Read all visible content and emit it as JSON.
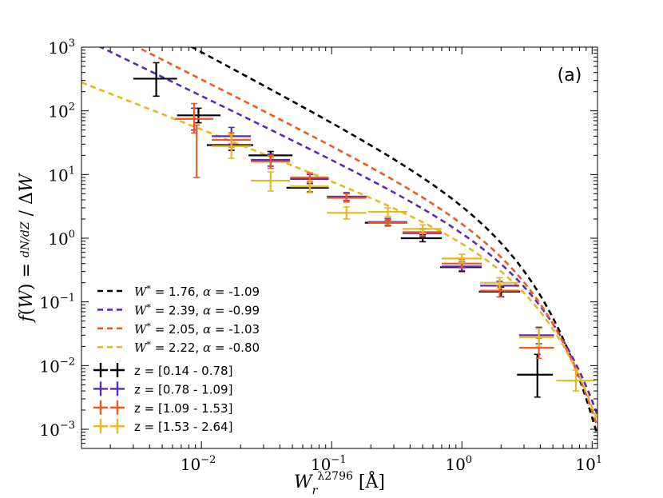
{
  "chart_data": {
    "type": "scatter",
    "panel_label": "(a)",
    "xlabel": "W_r^{λ2796} [Å]",
    "ylabel": "f(W) = dN/dZ / ΔW",
    "x_scale": "log",
    "y_scale": "log",
    "xlim": [
      0.0012,
      11
    ],
    "ylim": [
      0.0005,
      1000
    ],
    "x_tick_labels": [
      "10^-2",
      "10^-1",
      "10^0",
      "10^1"
    ],
    "y_tick_labels": [
      "10^-3",
      "10^-2",
      "10^-1",
      "10^0",
      "10^1",
      "10^2",
      "10^3"
    ],
    "grid": false,
    "legend_position": "lower-left",
    "fits": [
      {
        "label": "W* = 1.76, α = -1.09",
        "Wstar": 1.76,
        "alpha": -1.09,
        "norm": 3.0,
        "color": "#000000"
      },
      {
        "label": "W* = 2.39, α = -0.99",
        "Wstar": 2.39,
        "alpha": -0.99,
        "norm": 0.76,
        "color": "#5b2bb5"
      },
      {
        "label": "W* = 2.05, α = -1.03",
        "Wstar": 2.05,
        "alpha": -1.03,
        "norm": 1.3,
        "color": "#f05a22"
      },
      {
        "label": "W* = 2.22, α = -0.80",
        "Wstar": 2.22,
        "alpha": -0.8,
        "norm": 0.68,
        "color": "#e8b820"
      }
    ],
    "series": [
      {
        "name": "z = [0.14 - 0.78]",
        "color": "#000000",
        "points": [
          {
            "x": 0.0045,
            "y": 320,
            "xlo": 0.003,
            "xhi": 0.0065,
            "ylo": 170,
            "yhi": 570
          },
          {
            "x": 0.0095,
            "y": 85,
            "xlo": 0.0065,
            "xhi": 0.014,
            "ylo": 65,
            "yhi": 110
          },
          {
            "x": 0.017,
            "y": 29,
            "xlo": 0.011,
            "xhi": 0.025,
            "ylo": 24,
            "yhi": 35
          },
          {
            "x": 0.034,
            "y": 20,
            "xlo": 0.023,
            "xhi": 0.05,
            "ylo": 17,
            "yhi": 23
          },
          {
            "x": 0.068,
            "y": 6.2,
            "xlo": 0.045,
            "xhi": 0.095,
            "ylo": 5.3,
            "yhi": 7.2
          },
          {
            "x": 0.27,
            "y": 1.75,
            "xlo": 0.18,
            "xhi": 0.38,
            "ylo": 1.55,
            "yhi": 1.95
          },
          {
            "x": 0.5,
            "y": 1.0,
            "xlo": 0.34,
            "xhi": 0.7,
            "ylo": 0.88,
            "yhi": 1.13
          },
          {
            "x": 1.0,
            "y": 0.35,
            "xlo": 0.68,
            "xhi": 1.42,
            "ylo": 0.3,
            "yhi": 0.41
          },
          {
            "x": 2.0,
            "y": 0.145,
            "xlo": 1.35,
            "xhi": 2.8,
            "ylo": 0.12,
            "yhi": 0.17
          },
          {
            "x": 3.8,
            "y": 0.0072,
            "xlo": 2.65,
            "xhi": 5.0,
            "ylo": 0.0032,
            "yhi": 0.015
          }
        ]
      },
      {
        "name": "z = [0.78 - 1.09]",
        "color": "#5b2bb5",
        "points": [
          {
            "x": 0.0088,
            "y": 75,
            "xlo": 0.0063,
            "xhi": 0.0123,
            "ylo": 50,
            "yhi": 110
          },
          {
            "x": 0.017,
            "y": 40,
            "xlo": 0.012,
            "xhi": 0.024,
            "ylo": 30,
            "yhi": 55
          },
          {
            "x": 0.034,
            "y": 17,
            "xlo": 0.024,
            "xhi": 0.048,
            "ylo": 13.5,
            "yhi": 21
          },
          {
            "x": 0.068,
            "y": 8.5,
            "xlo": 0.048,
            "xhi": 0.095,
            "ylo": 7.2,
            "yhi": 10
          },
          {
            "x": 0.13,
            "y": 4.5,
            "xlo": 0.092,
            "xhi": 0.185,
            "ylo": 3.9,
            "yhi": 5.2
          },
          {
            "x": 0.27,
            "y": 1.8,
            "xlo": 0.19,
            "xhi": 0.38,
            "ylo": 1.6,
            "yhi": 2.05
          },
          {
            "x": 0.5,
            "y": 1.2,
            "xlo": 0.35,
            "xhi": 0.7,
            "ylo": 1.05,
            "yhi": 1.38
          },
          {
            "x": 1.0,
            "y": 0.36,
            "xlo": 0.7,
            "xhi": 1.42,
            "ylo": 0.31,
            "yhi": 0.42
          },
          {
            "x": 1.95,
            "y": 0.18,
            "xlo": 1.38,
            "xhi": 2.75,
            "ylo": 0.15,
            "yhi": 0.21
          },
          {
            "x": 3.9,
            "y": 0.03,
            "xlo": 2.75,
            "xhi": 5.1,
            "ylo": 0.022,
            "yhi": 0.04
          }
        ]
      },
      {
        "name": "z = [1.09 - 1.53]",
        "color": "#f05a22",
        "points": [
          {
            "x": 0.0088,
            "y": 75,
            "xlo": 0.0063,
            "xhi": 0.0123,
            "ylo": 45,
            "yhi": 130
          },
          {
            "x": 0.0092,
            "y": 30,
            "xlo": 0.0092,
            "xhi": 0.0092,
            "ylo": 9,
            "yhi": 60
          },
          {
            "x": 0.017,
            "y": 35,
            "xlo": 0.012,
            "xhi": 0.024,
            "ylo": 27,
            "yhi": 45
          },
          {
            "x": 0.034,
            "y": 16,
            "xlo": 0.024,
            "xhi": 0.048,
            "ylo": 12.5,
            "yhi": 20
          },
          {
            "x": 0.068,
            "y": 9.0,
            "xlo": 0.048,
            "xhi": 0.095,
            "ylo": 7.6,
            "yhi": 10.6
          },
          {
            "x": 0.13,
            "y": 4.3,
            "xlo": 0.092,
            "xhi": 0.185,
            "ylo": 3.7,
            "yhi": 5.0
          },
          {
            "x": 0.27,
            "y": 1.75,
            "xlo": 0.19,
            "xhi": 0.38,
            "ylo": 1.55,
            "yhi": 1.98
          },
          {
            "x": 0.5,
            "y": 1.25,
            "xlo": 0.35,
            "xhi": 0.7,
            "ylo": 1.1,
            "yhi": 1.42
          },
          {
            "x": 1.0,
            "y": 0.4,
            "xlo": 0.7,
            "xhi": 1.42,
            "ylo": 0.34,
            "yhi": 0.46
          },
          {
            "x": 1.95,
            "y": 0.15,
            "xlo": 1.38,
            "xhi": 2.75,
            "ylo": 0.12,
            "yhi": 0.18
          },
          {
            "x": 3.9,
            "y": 0.019,
            "xlo": 2.75,
            "xhi": 5.1,
            "ylo": 0.013,
            "yhi": 0.027
          }
        ]
      },
      {
        "name": "z = [1.53 - 2.64]",
        "color": "#e8b820",
        "points": [
          {
            "x": 0.017,
            "y": 28,
            "xlo": 0.012,
            "xhi": 0.024,
            "ylo": 18,
            "yhi": 42
          },
          {
            "x": 0.034,
            "y": 8.0,
            "xlo": 0.024,
            "xhi": 0.048,
            "ylo": 5.5,
            "yhi": 11
          },
          {
            "x": 0.068,
            "y": 6.5,
            "xlo": 0.048,
            "xhi": 0.095,
            "ylo": 5.2,
            "yhi": 8.0
          },
          {
            "x": 0.13,
            "y": 2.5,
            "xlo": 0.092,
            "xhi": 0.185,
            "ylo": 2.0,
            "yhi": 3.1
          },
          {
            "x": 0.27,
            "y": 2.6,
            "xlo": 0.19,
            "xhi": 0.38,
            "ylo": 2.2,
            "yhi": 3.0
          },
          {
            "x": 0.5,
            "y": 1.4,
            "xlo": 0.35,
            "xhi": 0.7,
            "ylo": 1.2,
            "yhi": 1.62
          },
          {
            "x": 1.0,
            "y": 0.48,
            "xlo": 0.7,
            "xhi": 1.42,
            "ylo": 0.41,
            "yhi": 0.56
          },
          {
            "x": 1.95,
            "y": 0.2,
            "xlo": 1.38,
            "xhi": 2.75,
            "ylo": 0.165,
            "yhi": 0.24
          },
          {
            "x": 3.9,
            "y": 0.028,
            "xlo": 2.75,
            "xhi": 5.1,
            "ylo": 0.02,
            "yhi": 0.038
          },
          {
            "x": 7.5,
            "y": 0.0058,
            "xlo": 5.3,
            "xhi": 10.5,
            "ylo": 0.004,
            "yhi": 0.0085
          }
        ]
      }
    ]
  }
}
